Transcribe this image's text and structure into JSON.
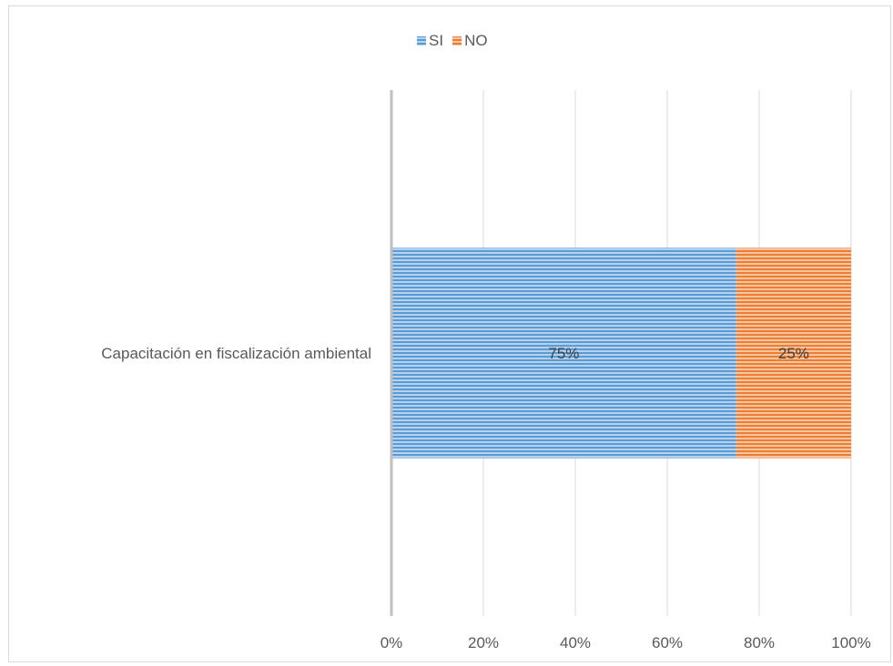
{
  "chart_data": {
    "type": "bar",
    "orientation": "horizontal",
    "stacked": "percent",
    "title": "",
    "xlabel": "",
    "ylabel": "",
    "categories": [
      "Capacitación en fiscalización ambiental"
    ],
    "series": [
      {
        "name": "SI",
        "values": [
          75
        ],
        "labels": [
          "75%"
        ],
        "color": "#5b9bd5"
      },
      {
        "name": "NO",
        "values": [
          25
        ],
        "labels": [
          "25%"
        ],
        "color": "#ed7d31"
      }
    ],
    "xlim": [
      0,
      100
    ],
    "x_ticks": [
      0,
      20,
      40,
      60,
      80,
      100
    ],
    "x_tick_labels": [
      "0%",
      "20%",
      "40%",
      "60%",
      "80%",
      "100%"
    ],
    "grid": true,
    "legend_position": "top",
    "bar_fill": "horizontal-stripes"
  }
}
